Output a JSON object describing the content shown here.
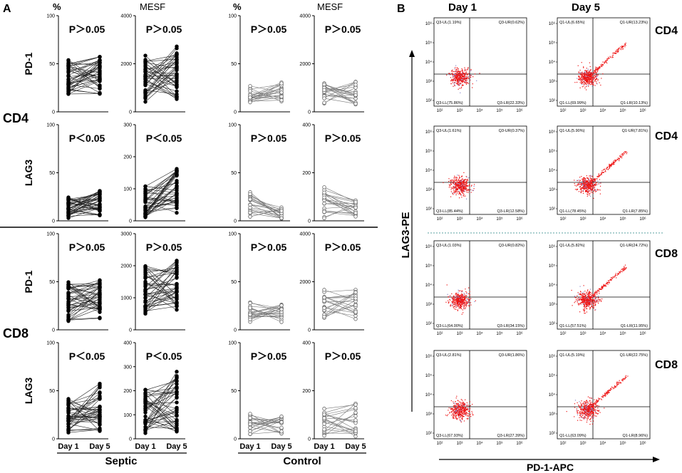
{
  "figure": {
    "panel_a_letter": "A",
    "panel_b_letter": "B"
  },
  "panel_a": {
    "col_headers": [
      "%",
      "MESF",
      "%",
      "MESF"
    ],
    "row_labels": [
      "PD-1",
      "LAG3",
      "PD-1",
      "LAG3"
    ],
    "group_labels": [
      "CD4",
      "CD8"
    ],
    "x_ticks": [
      "Day 1",
      "Day 5"
    ],
    "x_groups": [
      "Septic",
      "Control"
    ]
  },
  "panel_b": {
    "col_headers": [
      "Day 1",
      "Day 5"
    ],
    "row_labels": [
      "CD4",
      "CD4",
      "CD8",
      "CD8"
    ],
    "x_axis_label": "PD-1-APC",
    "y_axis_label": "LAG3-PE",
    "y_ticks": [
      "10^6",
      "10^5",
      "10^4",
      "10^3",
      "10^2"
    ],
    "x_ticks": [
      "10^2",
      "10^3",
      "10^4",
      "10^5",
      "10^6"
    ],
    "colors": {
      "dot": "#ee1111",
      "dot_faint": "#8888cc",
      "divider": "#5aa0a0"
    }
  },
  "chart_data": [
    {
      "type": "line",
      "group": "Septic",
      "population": "CD4",
      "marker": "PD-1",
      "unit": "%",
      "title": "P>0.05",
      "x": [
        "Day 1",
        "Day 5"
      ],
      "ylim": [
        0,
        100
      ],
      "yticks": [
        0,
        50,
        100
      ],
      "day1_range": [
        17,
        55
      ],
      "day5_range": [
        18,
        58
      ],
      "n": 40
    },
    {
      "type": "line",
      "group": "Septic",
      "population": "CD4",
      "marker": "PD-1",
      "unit": "MESF",
      "title": "P>0.05",
      "x": [
        "Day 1",
        "Day 5"
      ],
      "ylim": [
        0,
        4000
      ],
      "yticks": [
        0,
        2000,
        4000
      ],
      "day1_range": [
        400,
        2500
      ],
      "day5_range": [
        500,
        2800
      ],
      "n": 40
    },
    {
      "type": "line",
      "group": "Control",
      "population": "CD4",
      "marker": "PD-1",
      "unit": "%",
      "title": "P>0.05",
      "x": [
        "Day 1",
        "Day 5"
      ],
      "ylim": [
        0,
        100
      ],
      "yticks": [
        0,
        50,
        100
      ],
      "day1_range": [
        9,
        28
      ],
      "day5_range": [
        10,
        31
      ],
      "n": 20
    },
    {
      "type": "line",
      "group": "Control",
      "population": "CD4",
      "marker": "PD-1",
      "unit": "MESF",
      "title": "P>0.05",
      "x": [
        "Day 1",
        "Day 5"
      ],
      "ylim": [
        0,
        4000
      ],
      "yticks": [
        0,
        2000,
        4000
      ],
      "day1_range": [
        300,
        1200
      ],
      "day5_range": [
        300,
        1300
      ],
      "n": 20
    },
    {
      "type": "line",
      "group": "Septic",
      "population": "CD4",
      "marker": "LAG3",
      "unit": "%",
      "title": "P<0.05",
      "x": [
        "Day 1",
        "Day 5"
      ],
      "ylim": [
        0,
        100
      ],
      "yticks": [
        0,
        50,
        100
      ],
      "day1_range": [
        2,
        25
      ],
      "day5_range": [
        5,
        32
      ],
      "n": 40
    },
    {
      "type": "line",
      "group": "Septic",
      "population": "CD4",
      "marker": "LAG3",
      "unit": "MESF",
      "title": "P<0.05",
      "x": [
        "Day 1",
        "Day 5"
      ],
      "ylim": [
        0,
        300
      ],
      "yticks": [
        0,
        100,
        200,
        300
      ],
      "day1_range": [
        5,
        110
      ],
      "day5_range": [
        20,
        165
      ],
      "n": 40
    },
    {
      "type": "line",
      "group": "Control",
      "population": "CD4",
      "marker": "LAG3",
      "unit": "%",
      "title": "P>0.05",
      "x": [
        "Day 1",
        "Day 5"
      ],
      "ylim": [
        0,
        100
      ],
      "yticks": [
        0,
        50,
        100
      ],
      "day1_range": [
        2,
        31
      ],
      "day5_range": [
        2,
        14
      ],
      "n": 20
    },
    {
      "type": "line",
      "group": "Control",
      "population": "CD4",
      "marker": "LAG3",
      "unit": "MESF",
      "title": "P>0.05",
      "x": [
        "Day 1",
        "Day 5"
      ],
      "ylim": [
        0,
        400
      ],
      "yticks": [
        0,
        200,
        400
      ],
      "day1_range": [
        10,
        145
      ],
      "day5_range": [
        15,
        85
      ],
      "n": 20
    },
    {
      "type": "line",
      "group": "Septic",
      "population": "CD8",
      "marker": "PD-1",
      "unit": "%",
      "title": "P>0.05",
      "x": [
        "Day 1",
        "Day 5"
      ],
      "ylim": [
        0,
        100
      ],
      "yticks": [
        0,
        50,
        100
      ],
      "day1_range": [
        8,
        50
      ],
      "day5_range": [
        10,
        53
      ],
      "n": 40
    },
    {
      "type": "line",
      "group": "Septic",
      "population": "CD8",
      "marker": "PD-1",
      "unit": "MESF",
      "title": "P>0.05",
      "x": [
        "Day 1",
        "Day 5"
      ],
      "ylim": [
        0,
        3000
      ],
      "yticks": [
        0,
        1000,
        2000,
        3000
      ],
      "day1_range": [
        500,
        2100
      ],
      "day5_range": [
        600,
        2200
      ],
      "n": 40
    },
    {
      "type": "line",
      "group": "Control",
      "population": "CD8",
      "marker": "PD-1",
      "unit": "%",
      "title": "P>0.05",
      "x": [
        "Day 1",
        "Day 5"
      ],
      "ylim": [
        0,
        100
      ],
      "yticks": [
        0,
        50,
        100
      ],
      "day1_range": [
        8,
        29
      ],
      "day5_range": [
        8,
        27
      ],
      "n": 20
    },
    {
      "type": "line",
      "group": "Control",
      "population": "CD8",
      "marker": "PD-1",
      "unit": "MESF",
      "title": "P>0.05",
      "x": [
        "Day 1",
        "Day 5"
      ],
      "ylim": [
        0,
        4000
      ],
      "yticks": [
        0,
        2000,
        4000
      ],
      "day1_range": [
        400,
        1700
      ],
      "day5_range": [
        400,
        1750
      ],
      "n": 20
    },
    {
      "type": "line",
      "group": "Septic",
      "population": "CD8",
      "marker": "LAG3",
      "unit": "%",
      "title": "P<0.05",
      "x": [
        "Day 1",
        "Day 5"
      ],
      "ylim": [
        0,
        100
      ],
      "yticks": [
        0,
        50,
        100
      ],
      "day1_range": [
        6,
        42
      ],
      "day5_range": [
        8,
        58
      ],
      "n": 40
    },
    {
      "type": "line",
      "group": "Septic",
      "population": "CD8",
      "marker": "LAG3",
      "unit": "MESF",
      "title": "P<0.05",
      "x": [
        "Day 1",
        "Day 5"
      ],
      "ylim": [
        0,
        400
      ],
      "yticks": [
        0,
        100,
        200,
        300,
        400
      ],
      "day1_range": [
        20,
        210
      ],
      "day5_range": [
        30,
        280
      ],
      "n": 40
    },
    {
      "type": "line",
      "group": "Control",
      "population": "CD8",
      "marker": "LAG3",
      "unit": "%",
      "title": "P>0.05",
      "x": [
        "Day 1",
        "Day 5"
      ],
      "ylim": [
        0,
        100
      ],
      "yticks": [
        0,
        50,
        100
      ],
      "day1_range": [
        4,
        26
      ],
      "day5_range": [
        5,
        25
      ],
      "n": 20
    },
    {
      "type": "line",
      "group": "Control",
      "population": "CD8",
      "marker": "LAG3",
      "unit": "MESF",
      "title": "P>0.05",
      "x": [
        "Day 1",
        "Day 5"
      ],
      "ylim": [
        0,
        400
      ],
      "yticks": [
        0,
        200,
        400
      ],
      "day1_range": [
        10,
        140
      ],
      "day5_range": [
        10,
        155
      ],
      "n": 20
    },
    {
      "type": "scatter",
      "panel": "B",
      "population": "CD4",
      "marker": "PD-1",
      "day": "Day 1",
      "quadrants": [
        "Q3-UL(1.19%)",
        "Q3-UR(0.62%)",
        "Q3-LL(75.86%)",
        "Q3-LR(22.33%)"
      ],
      "streak": false
    },
    {
      "type": "scatter",
      "panel": "B",
      "population": "CD4",
      "marker": "PD-1",
      "day": "Day 5",
      "quadrants": [
        "Q1-UL(6.65%)",
        "Q1-UR(13.23%)",
        "Q1-LL(69.99%)",
        "Q1-LR(10.13%)"
      ],
      "streak": true
    },
    {
      "type": "scatter",
      "panel": "B",
      "population": "CD4",
      "marker": "LAG3",
      "day": "Day 1",
      "quadrants": [
        "Q3-UL(1.61%)",
        "Q3-UR(0.37%)",
        "Q3-LL(85.44%)",
        "Q3-LR(12.58%)"
      ],
      "streak": false
    },
    {
      "type": "scatter",
      "panel": "B",
      "population": "CD4",
      "marker": "LAG3",
      "day": "Day 5",
      "quadrants": [
        "Q1-UL(5.90%)",
        "Q1-UR(7.81%)",
        "Q1-LL(78.45%)",
        "Q1-LR(7.85%)"
      ],
      "streak": true
    },
    {
      "type": "scatter",
      "panel": "B",
      "population": "CD8",
      "marker": "PD-1",
      "day": "Day 1",
      "quadrants": [
        "Q3-UL(1.03%)",
        "Q3-UR(0.82%)",
        "Q3-LL(64.00%)",
        "Q3-LR(34.15%)"
      ],
      "streak": false
    },
    {
      "type": "scatter",
      "panel": "B",
      "population": "CD8",
      "marker": "PD-1",
      "day": "Day 5",
      "quadrants": [
        "Q1-UL(5.82%)",
        "Q1-UR(24.72%)",
        "Q1-LL(57.51%)",
        "Q1-LR(11.95%)"
      ],
      "streak": true
    },
    {
      "type": "scatter",
      "panel": "B",
      "population": "CD8",
      "marker": "LAG3",
      "day": "Day 1",
      "quadrants": [
        "Q3-UL(2.81%)",
        "Q3-UR(1.86%)",
        "Q3-LL(67.93%)",
        "Q3-LR(27.39%)"
      ],
      "streak": false
    },
    {
      "type": "scatter",
      "panel": "B",
      "population": "CD8",
      "marker": "LAG3",
      "day": "Day 5",
      "quadrants": [
        "Q1-UL(5.19%)",
        "Q1-UR(22.75%)",
        "Q1-LL(63.09%)",
        "Q1-LR(8.96%)"
      ],
      "streak": true
    }
  ]
}
